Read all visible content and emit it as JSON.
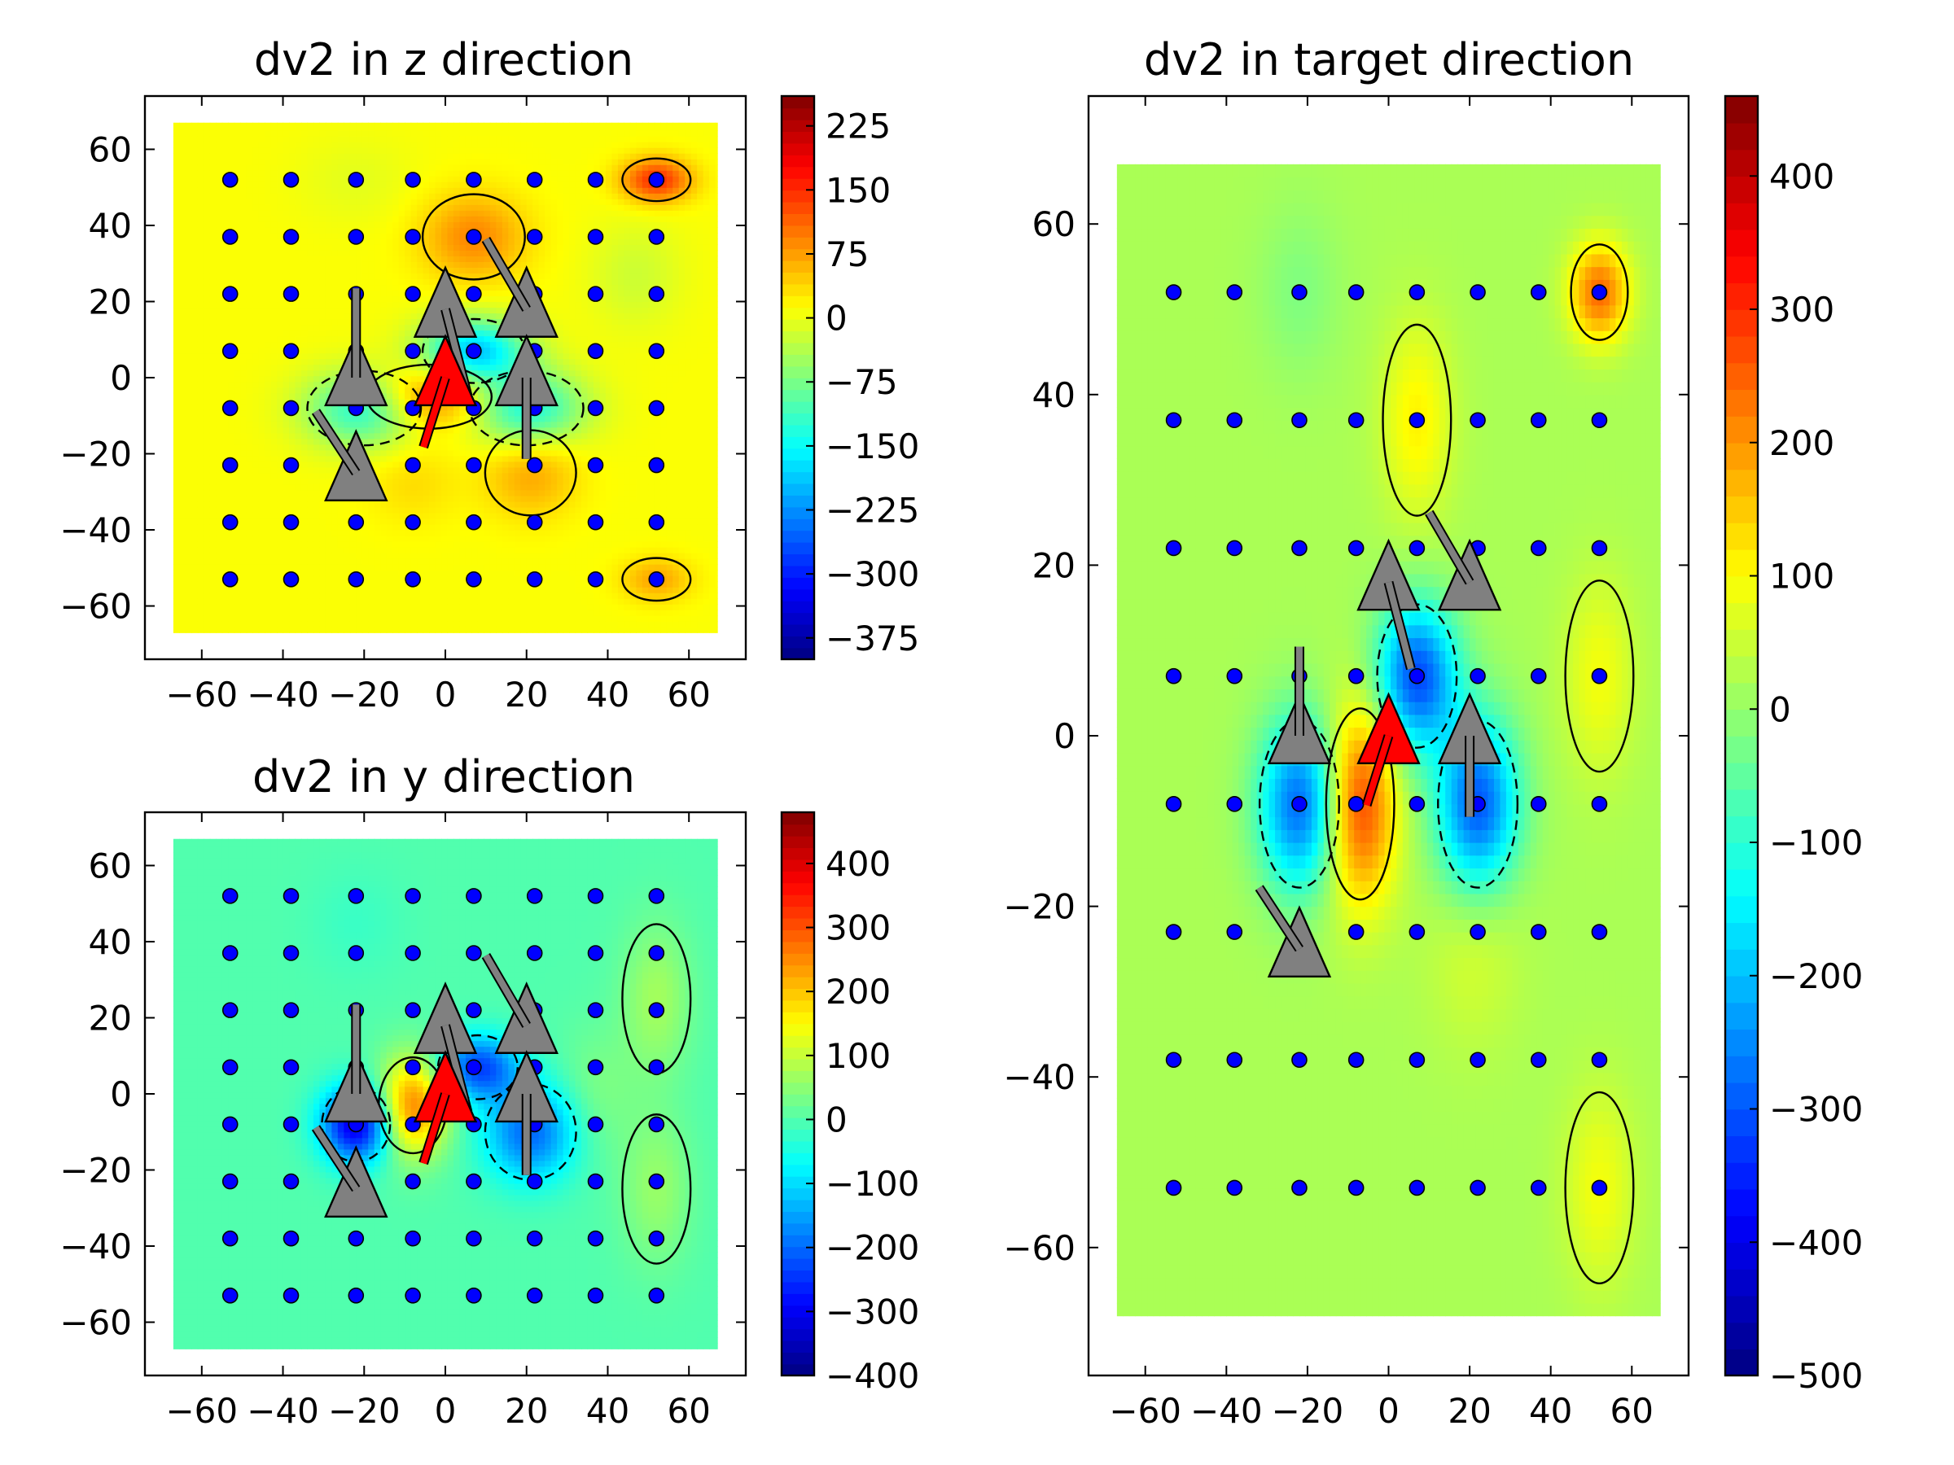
{
  "chart_data": [
    {
      "id": "z",
      "type": "heatmap",
      "title": "dv2 in z direction",
      "xlabel": "",
      "ylabel": "",
      "xlim": [
        -74,
        74
      ],
      "ylim": [
        -74,
        74
      ],
      "field_extent": [
        -67,
        67
      ],
      "xticks": [
        -60,
        -40,
        -20,
        0,
        20,
        40,
        60
      ],
      "yticks": [
        -60,
        -40,
        -20,
        0,
        20,
        40,
        60
      ],
      "colorbar": {
        "min": -400,
        "max": 260,
        "ticks": [
          -375,
          -300,
          -225,
          -150,
          -75,
          0,
          75,
          150,
          225
        ]
      },
      "background_value": 10,
      "blobs": [
        {
          "x": -20,
          "y": -8,
          "amp": -150,
          "sx": 10,
          "sy": 7
        },
        {
          "x": 20,
          "y": -8,
          "amp": -150,
          "sx": 10,
          "sy": 7
        },
        {
          "x": 7,
          "y": 7,
          "amp": -200,
          "sx": 9,
          "sy": 6
        },
        {
          "x": -4,
          "y": -5,
          "amp": 110,
          "sx": 11,
          "sy": 6
        },
        {
          "x": 7,
          "y": 37,
          "amp": 80,
          "sx": 9,
          "sy": 8
        },
        {
          "x": 21,
          "y": -25,
          "amp": 60,
          "sx": 8,
          "sy": 8
        },
        {
          "x": -8,
          "y": -27,
          "amp": 25,
          "sx": 8,
          "sy": 8
        },
        {
          "x": 52,
          "y": 52,
          "amp": 140,
          "sx": 6,
          "sy": 4
        },
        {
          "x": 52,
          "y": -53,
          "amp": 60,
          "sx": 6,
          "sy": 4
        },
        {
          "x": 47,
          "y": 27,
          "amp": -30,
          "sx": 8,
          "sy": 10
        },
        {
          "x": -22,
          "y": 52,
          "amp": -15,
          "sx": 10,
          "sy": 8
        }
      ]
    },
    {
      "id": "y",
      "type": "heatmap",
      "title": "dv2 in y direction",
      "xlabel": "",
      "ylabel": "",
      "xlim": [
        -74,
        74
      ],
      "ylim": [
        -74,
        74
      ],
      "field_extent": [
        -67,
        67
      ],
      "xticks": [
        -60,
        -40,
        -20,
        0,
        20,
        40,
        60
      ],
      "yticks": [
        -60,
        -40,
        -20,
        0,
        20,
        40,
        60
      ],
      "colorbar": {
        "min": -400,
        "max": 480,
        "ticks": [
          -400,
          -300,
          -200,
          -100,
          0,
          100,
          200,
          300,
          400
        ]
      },
      "background_value": 0,
      "blobs": [
        {
          "x": -22,
          "y": -8,
          "amp": -320,
          "sx": 6,
          "sy": 7
        },
        {
          "x": 21,
          "y": -10,
          "amp": -200,
          "sx": 8,
          "sy": 9
        },
        {
          "x": 8,
          "y": 7,
          "amp": -230,
          "sx": 7,
          "sy": 6
        },
        {
          "x": -8,
          "y": -3,
          "amp": 260,
          "sx": 6,
          "sy": 9
        },
        {
          "x": 52,
          "y": 25,
          "amp": 70,
          "sx": 6,
          "sy": 14
        },
        {
          "x": 52,
          "y": -25,
          "amp": 60,
          "sx": 6,
          "sy": 14
        },
        {
          "x": -22,
          "y": 45,
          "amp": -20,
          "sx": 8,
          "sy": 10
        },
        {
          "x": 37,
          "y": 0,
          "amp": 40,
          "sx": 7,
          "sy": 12
        }
      ]
    },
    {
      "id": "target",
      "type": "heatmap",
      "title": "dv2 in target direction",
      "xlabel": "",
      "ylabel": "",
      "xlim": [
        -74,
        74
      ],
      "ylim": [
        -75,
        75
      ],
      "field_extent": [
        -67,
        67
      ],
      "field_extent_y": [
        -68,
        67
      ],
      "xticks": [
        -60,
        -40,
        -20,
        0,
        20,
        40,
        60
      ],
      "yticks": [
        -60,
        -40,
        -20,
        0,
        20,
        40,
        60
      ],
      "colorbar": {
        "min": -500,
        "max": 460,
        "ticks": [
          -500,
          -400,
          -300,
          -200,
          -100,
          0,
          100,
          200,
          300,
          400
        ]
      },
      "background_value": 20,
      "blobs": [
        {
          "x": -22,
          "y": -8,
          "amp": -300,
          "sx": 7,
          "sy": 7
        },
        {
          "x": 22,
          "y": -8,
          "amp": -320,
          "sx": 7,
          "sy": 7
        },
        {
          "x": 7,
          "y": 7,
          "amp": -330,
          "sx": 7,
          "sy": 6
        },
        {
          "x": -7,
          "y": -8,
          "amp": 260,
          "sx": 6,
          "sy": 8
        },
        {
          "x": 7,
          "y": 37,
          "amp": 90,
          "sx": 6,
          "sy": 8
        },
        {
          "x": 52,
          "y": 52,
          "amp": 220,
          "sx": 5,
          "sy": 4
        },
        {
          "x": 52,
          "y": 7,
          "amp": 70,
          "sx": 6,
          "sy": 8
        },
        {
          "x": 52,
          "y": -53,
          "amp": 70,
          "sx": 6,
          "sy": 8
        },
        {
          "x": -22,
          "y": 52,
          "amp": -40,
          "sx": 7,
          "sy": 7
        },
        {
          "x": 21,
          "y": -25,
          "amp": 40,
          "sx": 8,
          "sy": 8
        }
      ]
    }
  ],
  "electrode_grid": {
    "x": [
      -53,
      -38,
      -22,
      -8,
      7,
      22,
      37,
      52
    ],
    "y": [
      52,
      37,
      22,
      7,
      -8,
      -23,
      -38,
      -53
    ]
  },
  "neurons": [
    {
      "x": -22,
      "y": 0,
      "dir": [
        0.0,
        1.0
      ],
      "color": "#808080",
      "len": 22
    },
    {
      "x": -22,
      "y": -25,
      "dir": [
        -0.55,
        0.84
      ],
      "color": "#808080",
      "len": 18
    },
    {
      "x": 0,
      "y": 18,
      "dir": [
        0.25,
        -0.97
      ],
      "color": "#808080",
      "len": 22
    },
    {
      "x": 20,
      "y": 18,
      "dir": [
        -0.5,
        0.86
      ],
      "color": "#808080",
      "len": 20
    },
    {
      "x": 20,
      "y": 0,
      "dir": [
        0.0,
        -1.0
      ],
      "color": "#808080",
      "len": 20
    },
    {
      "x": 0,
      "y": 0,
      "dir": [
        -0.3,
        -0.95
      ],
      "color": "#ff0000",
      "len": 18
    }
  ],
  "colors": {
    "marker_fill": "#0000ff",
    "neuron_gray": "#808080",
    "neuron_red": "#ff0000"
  }
}
